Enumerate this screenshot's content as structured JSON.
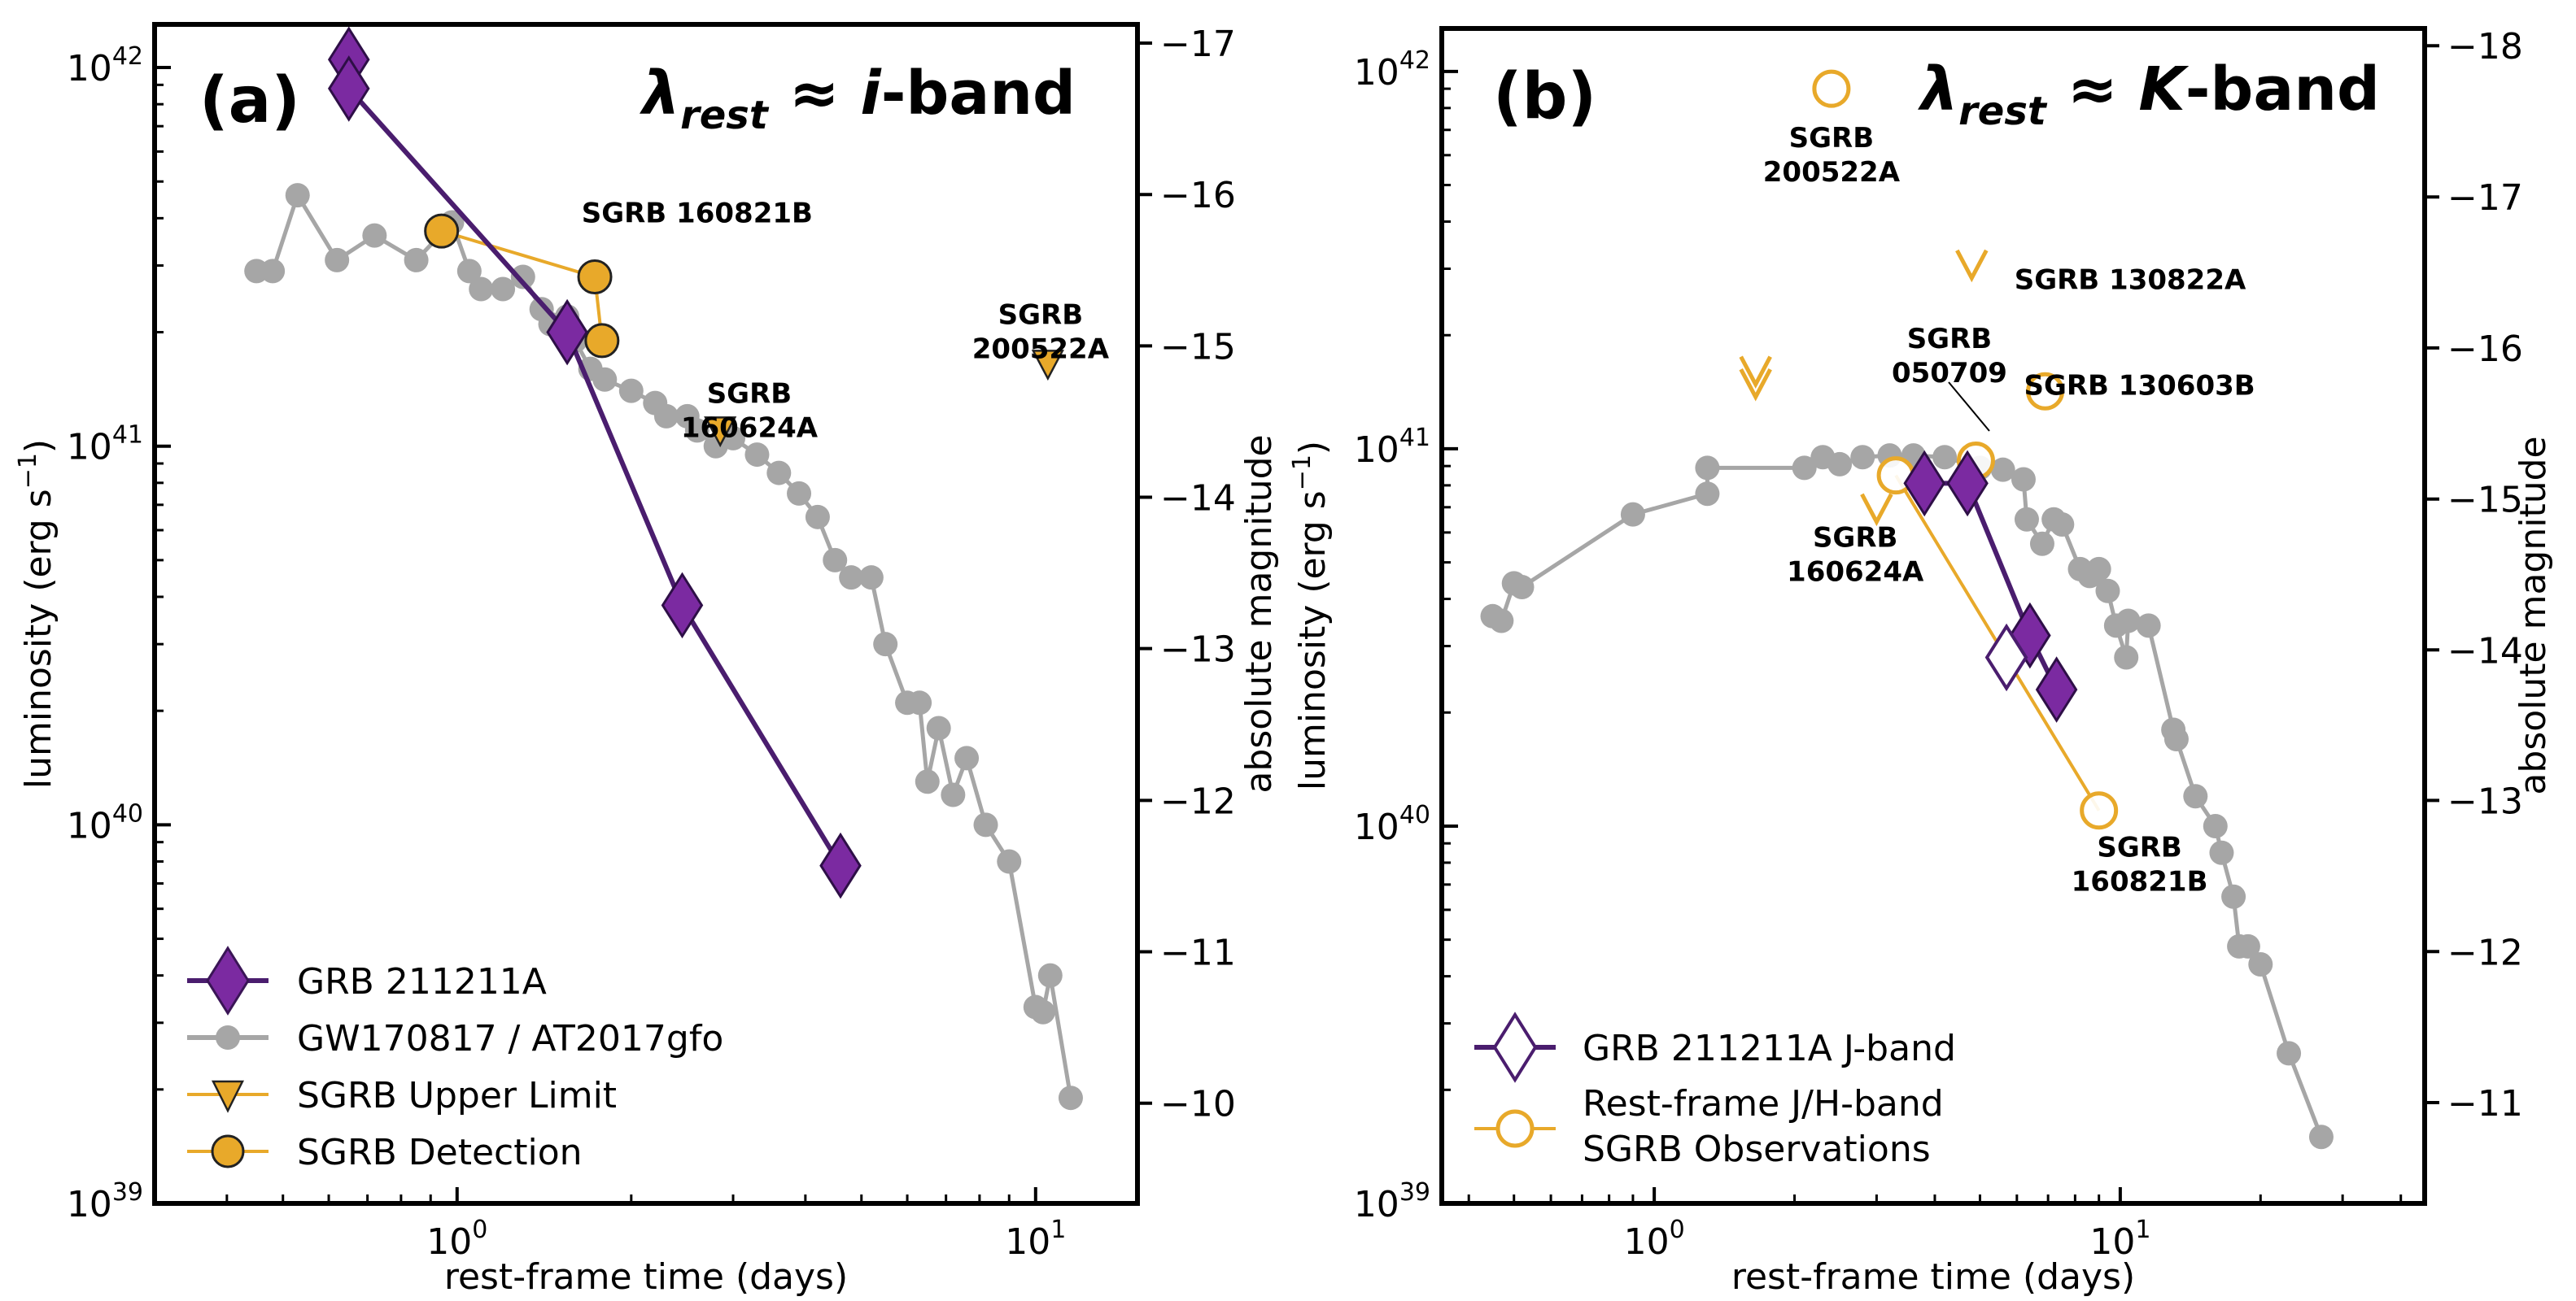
{
  "figure": {
    "panels": [
      {
        "id": "a",
        "label": "(a)",
        "band_title": {
          "lambda": "λ",
          "sub": "rest",
          "approx": " ≈ ",
          "band": "i",
          "suffix": "-band"
        },
        "xlabel": "rest-frame time (days)",
        "ylabel_main": "luminosity (erg s",
        "ylabel_exp": "−1",
        "ylabel_close": ")",
        "ylabel_right": "absolute magnitude",
        "legend": [
          {
            "kind": "grb",
            "label": "GRB 211211A"
          },
          {
            "kind": "gw",
            "label": "GW170817 / AT2017gfo"
          },
          {
            "kind": "ul",
            "label": "SGRB Upper Limit"
          },
          {
            "kind": "det",
            "label": "SGRB Detection"
          }
        ]
      },
      {
        "id": "b",
        "label": "(b)",
        "band_title": {
          "lambda": "λ",
          "sub": "rest",
          "approx": " ≈ ",
          "band": "K",
          "suffix": "-band"
        },
        "xlabel": "rest-frame time (days)",
        "ylabel_main": "luminosity (erg s",
        "ylabel_exp": "−1",
        "ylabel_close": ")",
        "ylabel_right": "absolute magnitude",
        "legend": [
          {
            "kind": "grbj",
            "label": "GRB 211211A J-band"
          },
          {
            "kind": "obs",
            "label": "Rest-frame J/H-band"
          },
          {
            "kind": "obs2",
            "label": "SGRB Observations"
          }
        ]
      }
    ]
  },
  "chart_data": [
    {
      "type": "scatter",
      "title": "(a) λrest ≈ i-band",
      "xlabel": "rest-frame time (days)",
      "ylabel": "luminosity (erg s−1)",
      "ylabel_right": "absolute magnitude",
      "xscale": "log",
      "yscale": "log",
      "xlim": [
        0.3,
        15
      ],
      "ylim": [
        1e+39,
        1.3e+42
      ],
      "x_ticks": [
        {
          "v": 1,
          "base": "10",
          "exp": "0"
        },
        {
          "v": 10,
          "base": "10",
          "exp": "1"
        }
      ],
      "y_ticks": [
        {
          "v": 1e+39,
          "base": "10",
          "exp": "39"
        },
        {
          "v": 1e+40,
          "base": "10",
          "exp": "40"
        },
        {
          "v": 1e+41,
          "base": "10",
          "exp": "41"
        },
        {
          "v": 1e+42,
          "base": "10",
          "exp": "42"
        }
      ],
      "mag_ticks": [
        {
          "lum": 1.84e+39,
          "label": "−10"
        },
        {
          "lum": 4.62e+39,
          "label": "−11"
        },
        {
          "lum": 1.16e+40,
          "label": "−12"
        },
        {
          "lum": 2.92e+40,
          "label": "−13"
        },
        {
          "lum": 7.33e+40,
          "label": "−14"
        },
        {
          "lum": 1.84e+41,
          "label": "−15"
        },
        {
          "lum": 4.62e+41,
          "label": "−16"
        },
        {
          "lum": 1.16e+42,
          "label": "−17"
        }
      ],
      "series": [
        {
          "name": "GW170817 / AT2017gfo",
          "color": "#a6a6a6",
          "points": [
            [
              0.45,
              2.9e+41
            ],
            [
              0.48,
              2.9e+41
            ],
            [
              0.53,
              4.6e+41
            ],
            [
              0.62,
              3.1e+41
            ],
            [
              0.72,
              3.6e+41
            ],
            [
              0.85,
              3.1e+41
            ],
            [
              0.98,
              3.9e+41
            ],
            [
              1.05,
              2.9e+41
            ],
            [
              1.1,
              2.6e+41
            ],
            [
              1.2,
              2.6e+41
            ],
            [
              1.3,
              2.8e+41
            ],
            [
              1.4,
              2.3e+41
            ],
            [
              1.45,
              2.1e+41
            ],
            [
              1.55,
              2.2e+41
            ],
            [
              1.6,
              1.9e+41
            ],
            [
              1.7,
              1.6e+41
            ],
            [
              1.8,
              1.5e+41
            ],
            [
              2.0,
              1.4e+41
            ],
            [
              2.2,
              1.3e+41
            ],
            [
              2.3,
              1.2e+41
            ],
            [
              2.5,
              1.2e+41
            ],
            [
              2.6,
              1.1e+41
            ],
            [
              2.8,
              1e+41
            ],
            [
              3.0,
              1.05e+41
            ],
            [
              3.3,
              9.5e+40
            ],
            [
              3.6,
              8.5e+40
            ],
            [
              3.9,
              7.5e+40
            ],
            [
              4.2,
              6.5e+40
            ],
            [
              4.5,
              5e+40
            ],
            [
              4.8,
              4.5e+40
            ],
            [
              5.2,
              4.5e+40
            ],
            [
              5.5,
              3e+40
            ],
            [
              6.0,
              2.1e+40
            ],
            [
              6.3,
              2.1e+40
            ],
            [
              6.5,
              1.3e+40
            ],
            [
              6.8,
              1.8e+40
            ],
            [
              7.2,
              1.2e+40
            ],
            [
              7.6,
              1.5e+40
            ],
            [
              8.2,
              1e+40
            ],
            [
              9.0,
              8e+39
            ],
            [
              10.0,
              3.3e+39
            ],
            [
              10.3,
              3.2e+39
            ],
            [
              10.6,
              4e+39
            ],
            [
              11.5,
              1.9e+39
            ]
          ]
        },
        {
          "name": "GRB 211211A",
          "color": "#4a1d6e",
          "marker_color": "#7b2aa1",
          "points": [
            [
              0.65,
              1.05e+42
            ],
            [
              0.65,
              8.8e+41
            ],
            [
              1.55,
              2e+41
            ],
            [
              2.45,
              3.8e+40
            ],
            [
              4.6,
              7.8e+39
            ]
          ]
        },
        {
          "name": "SGRB 160821B",
          "type": "detection",
          "color": "#e8a92a",
          "points": [
            [
              0.94,
              3.7e+41
            ],
            [
              1.73,
              2.8e+41
            ],
            [
              1.78,
              1.9e+41
            ]
          ]
        },
        {
          "name": "SGRB Upper Limits",
          "type": "upper_limit",
          "color": "#e8a92a",
          "points": [
            [
              2.85,
              1.1e+41
            ],
            [
              10.5,
              1.65e+41
            ]
          ]
        }
      ],
      "annotations": [
        {
          "text": [
            "SGRB 160821B"
          ],
          "x": 2.6,
          "y": 3.9e+41
        },
        {
          "text": [
            "SGRB",
            "160624A"
          ],
          "x": 3.2,
          "y": 1.3e+41
        },
        {
          "text": [
            "SGRB",
            "200522A"
          ],
          "x": 10.2,
          "y": 2.1e+41
        }
      ],
      "legend_position": "lower-left"
    },
    {
      "type": "scatter",
      "title": "(b) λrest ≈ K-band",
      "xlabel": "rest-frame time (days)",
      "ylabel": "luminosity (erg s−1)",
      "ylabel_right": "absolute magnitude",
      "xscale": "log",
      "yscale": "log",
      "xlim": [
        0.35,
        45
      ],
      "ylim": [
        1e+39,
        1.3e+42
      ],
      "x_ticks": [
        {
          "v": 1,
          "base": "10",
          "exp": "0"
        },
        {
          "v": 10,
          "base": "10",
          "exp": "1"
        }
      ],
      "y_ticks": [
        {
          "v": 1e+39,
          "base": "10",
          "exp": "39"
        },
        {
          "v": 1e+40,
          "base": "10",
          "exp": "40"
        },
        {
          "v": 1e+41,
          "base": "10",
          "exp": "41"
        },
        {
          "v": 1e+42,
          "base": "10",
          "exp": "42"
        }
      ],
      "mag_ticks": [
        {
          "lum": 1.85e+39,
          "label": "−11"
        },
        {
          "lum": 4.65e+39,
          "label": "−12"
        },
        {
          "lum": 1.17e+40,
          "label": "−13"
        },
        {
          "lum": 2.93e+40,
          "label": "−14"
        },
        {
          "lum": 7.36e+40,
          "label": "−15"
        },
        {
          "lum": 1.85e+41,
          "label": "−16"
        },
        {
          "lum": 4.65e+41,
          "label": "−17"
        },
        {
          "lum": 1.17e+42,
          "label": "−18"
        }
      ],
      "series": [
        {
          "name": "GW170817 / AT2017gfo",
          "color": "#a6a6a6",
          "points": [
            [
              0.45,
              3.6e+40
            ],
            [
              0.47,
              3.5e+40
            ],
            [
              0.5,
              4.4e+40
            ],
            [
              0.52,
              4.3e+40
            ],
            [
              0.9,
              6.7e+40
            ],
            [
              1.3,
              7.6e+40
            ],
            [
              1.3,
              8.9e+40
            ],
            [
              2.1,
              8.9e+40
            ],
            [
              2.3,
              9.5e+40
            ],
            [
              2.5,
              9.1e+40
            ],
            [
              2.8,
              9.5e+40
            ],
            [
              3.2,
              9.6e+40
            ],
            [
              3.6,
              9.6e+40
            ],
            [
              4.2,
              9.5e+40
            ],
            [
              5.0,
              8.9e+40
            ],
            [
              5.6,
              8.8e+40
            ],
            [
              6.2,
              8.3e+40
            ],
            [
              6.3,
              6.5e+40
            ],
            [
              6.8,
              5.6e+40
            ],
            [
              7.2,
              6.5e+40
            ],
            [
              7.5,
              6.3e+40
            ],
            [
              8.2,
              4.8e+40
            ],
            [
              8.6,
              4.6e+40
            ],
            [
              9.0,
              4.8e+40
            ],
            [
              9.4,
              4.2e+40
            ],
            [
              9.8,
              3.4e+40
            ],
            [
              10.3,
              2.8e+40
            ],
            [
              10.4,
              3.5e+40
            ],
            [
              11.5,
              3.4e+40
            ],
            [
              13.0,
              1.8e+40
            ],
            [
              13.2,
              1.7e+40
            ],
            [
              14.5,
              1.2e+40
            ],
            [
              16.0,
              1e+40
            ],
            [
              16.5,
              8.5e+39
            ],
            [
              17.5,
              6.5e+39
            ],
            [
              18.0,
              4.8e+39
            ],
            [
              18.8,
              4.8e+39
            ],
            [
              20.0,
              4.3e+39
            ],
            [
              23.0,
              2.5e+39
            ],
            [
              27.0,
              1.5e+39
            ]
          ]
        },
        {
          "name": "GRB 211211A",
          "color": "#4a1d6e",
          "marker_color": "#7b2aa1",
          "points": [
            [
              3.8,
              8.1e+40
            ],
            [
              4.7,
              8.1e+40
            ],
            [
              6.4,
              3.2e+40
            ],
            [
              7.3,
              2.3e+40
            ]
          ]
        },
        {
          "name": "GRB 211211A J-band",
          "type": "open_diamond",
          "color": "#4a1d6e",
          "points": [
            [
              5.7,
              2.8e+40
            ]
          ]
        },
        {
          "name": "Rest-frame J/H-band SGRB Observations",
          "type": "open_circle",
          "color": "#e8a92a",
          "points": [
            [
              2.4,
              9e+41
            ],
            [
              6.9,
              1.42e+41
            ],
            [
              3.3,
              8.5e+40
            ],
            [
              4.9,
              9.3e+40
            ],
            [
              9.0,
              1.1e+40
            ]
          ]
        },
        {
          "name": "SGRB upper limits",
          "type": "open_upper_limit",
          "color": "#e8a92a",
          "points": [
            [
              1.65,
              1.5e+41
            ],
            [
              1.65,
              1.62e+41
            ],
            [
              3.0,
              7e+40
            ],
            [
              4.8,
              3.1e+41
            ]
          ]
        }
      ],
      "annotations": [
        {
          "text": [
            "SGRB",
            "200522A"
          ],
          "x": 2.4,
          "y": 6.3e+41
        },
        {
          "text": [
            "SGRB 130822A"
          ],
          "x": 10.5,
          "y": 2.65e+41
        },
        {
          "text": [
            "SGRB 130603B"
          ],
          "x": 11.0,
          "y": 1.39e+41
        },
        {
          "text": [
            "SGRB",
            "050709"
          ],
          "x": 4.3,
          "y": 1.85e+41
        },
        {
          "text": [
            "SGRB",
            "160624A"
          ],
          "x": 2.7,
          "y": 5.5e+40
        },
        {
          "text": [
            "SGRB",
            "160821B"
          ],
          "x": 11.0,
          "y": 8.3e+39
        }
      ],
      "legend_position": "lower-left"
    }
  ]
}
